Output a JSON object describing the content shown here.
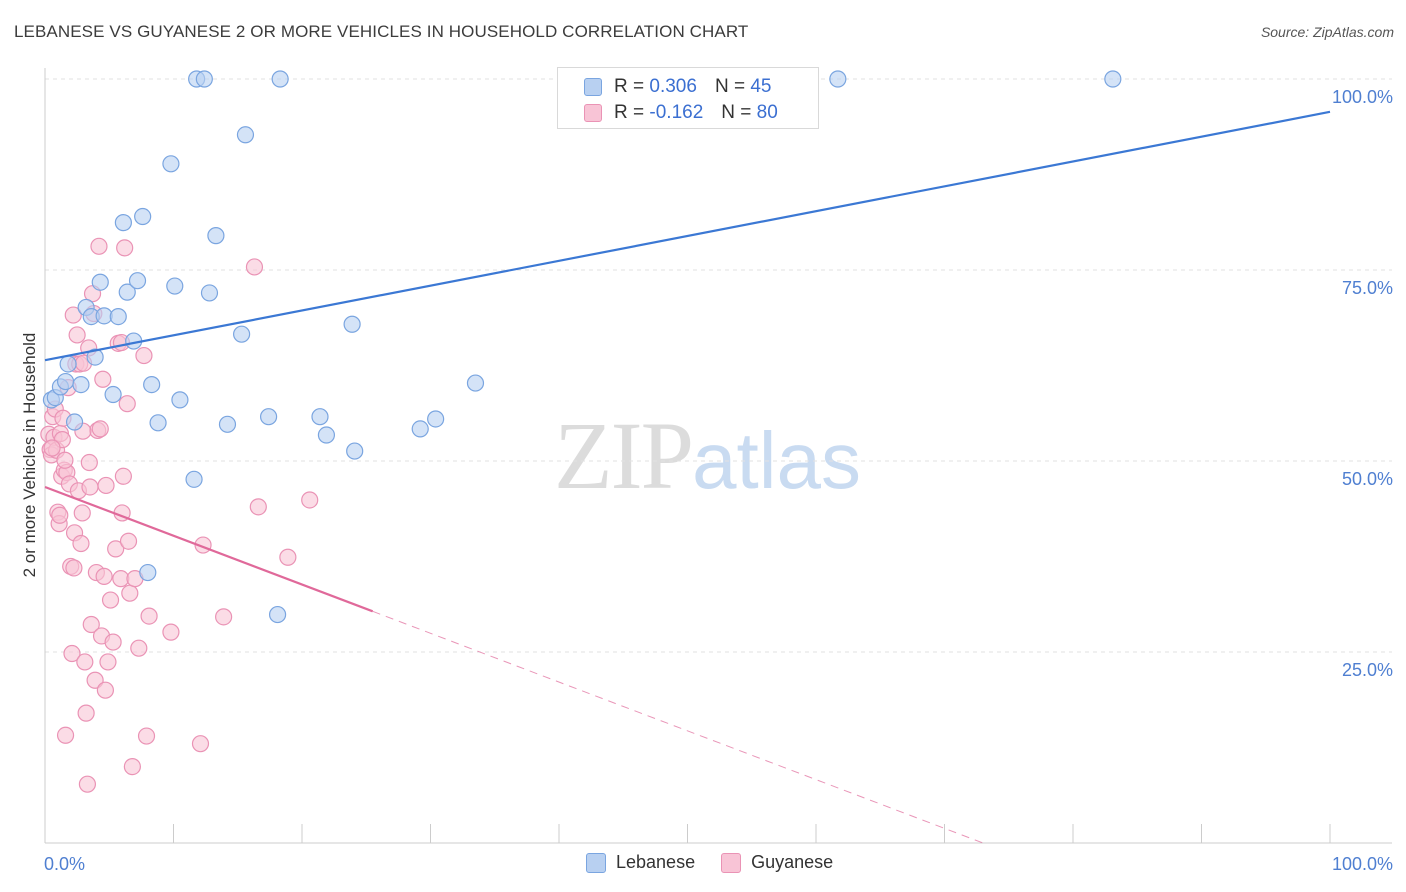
{
  "title": "LEBANESE VS GUYANESE 2 OR MORE VEHICLES IN HOUSEHOLD CORRELATION CHART",
  "source": "Source: ZipAtlas.com",
  "watermark": {
    "zip": "ZIP",
    "atlas": "atlas"
  },
  "colors": {
    "blue": "#3b78d4",
    "blue_fill": "#b8d0f1",
    "blue_stroke": "#7aa5e0",
    "pink": "#e0699a",
    "pink_fill": "#f8c4d6",
    "pink_stroke": "#ea93b5",
    "grid": "#e2e2e2",
    "tick_text": "#4f7fd1"
  },
  "legend": {
    "rows": [
      {
        "r_label": "R =",
        "r_value": "0.306",
        "n_label": "N =",
        "n_value": "45"
      },
      {
        "r_label": "R =",
        "r_value": "-0.162",
        "n_label": "N =",
        "n_value": "80"
      }
    ]
  },
  "bottom_legend": {
    "items": [
      "Lebanese",
      "Guyanese"
    ]
  },
  "chart_data": {
    "type": "scatter",
    "title": "LEBANESE VS GUYANESE 2 OR MORE VEHICLES IN HOUSEHOLD CORRELATION CHART",
    "xlabel": "",
    "ylabel": "2 or more Vehicles in Household",
    "xlim": [
      0,
      100
    ],
    "ylim": [
      0,
      100
    ],
    "x_tick_labels": [
      "0.0%",
      "100.0%"
    ],
    "y_ticks": [
      25,
      50,
      75,
      100
    ],
    "y_tick_labels": [
      "25.0%",
      "50.0%",
      "75.0%",
      "100.0%"
    ],
    "grid": true,
    "series": [
      {
        "name": "Lebanese",
        "r": 0.306,
        "n": 45,
        "trend": {
          "x0": 0,
          "y0": 63.2,
          "x1": 100,
          "y1": 95.7,
          "solid_until": 100
        },
        "points": [
          [
            0.5,
            58.0
          ],
          [
            0.8,
            58.3
          ],
          [
            1.2,
            59.7
          ],
          [
            1.6,
            60.4
          ],
          [
            1.8,
            62.7
          ],
          [
            2.3,
            55.1
          ],
          [
            2.8,
            60.0
          ],
          [
            3.2,
            70.1
          ],
          [
            3.6,
            68.9
          ],
          [
            3.9,
            63.6
          ],
          [
            4.3,
            73.4
          ],
          [
            4.6,
            69.0
          ],
          [
            5.3,
            58.7
          ],
          [
            5.7,
            68.9
          ],
          [
            6.1,
            81.2
          ],
          [
            6.4,
            72.1
          ],
          [
            6.9,
            65.7
          ],
          [
            7.2,
            73.6
          ],
          [
            7.6,
            82.0
          ],
          [
            8.0,
            35.4
          ],
          [
            8.3,
            60.0
          ],
          [
            8.8,
            55.0
          ],
          [
            9.8,
            88.9
          ],
          [
            10.1,
            72.9
          ],
          [
            10.5,
            58.0
          ],
          [
            11.6,
            47.6
          ],
          [
            11.8,
            100.0
          ],
          [
            12.4,
            100.0
          ],
          [
            12.8,
            72.0
          ],
          [
            13.3,
            79.5
          ],
          [
            14.2,
            54.8
          ],
          [
            15.3,
            66.6
          ],
          [
            15.6,
            92.7
          ],
          [
            17.4,
            55.8
          ],
          [
            18.1,
            29.9
          ],
          [
            18.3,
            100.0
          ],
          [
            21.4,
            55.8
          ],
          [
            21.9,
            53.4
          ],
          [
            23.9,
            67.9
          ],
          [
            24.1,
            51.3
          ],
          [
            29.2,
            54.2
          ],
          [
            30.4,
            55.5
          ],
          [
            33.5,
            60.2
          ],
          [
            61.7,
            100.0
          ],
          [
            83.1,
            100.0
          ]
        ]
      },
      {
        "name": "Guyanese",
        "r": -0.162,
        "n": 80,
        "trend": {
          "x0": 0,
          "y0": 46.6,
          "x1": 73.0,
          "y1": 0,
          "solid_until": 25.5
        },
        "points": [
          [
            0.3,
            53.5
          ],
          [
            0.4,
            51.5
          ],
          [
            0.5,
            50.8
          ],
          [
            0.6,
            55.8
          ],
          [
            0.7,
            53.1
          ],
          [
            0.8,
            56.8
          ],
          [
            0.9,
            51.4
          ],
          [
            1.0,
            43.3
          ],
          [
            1.1,
            41.8
          ],
          [
            1.2,
            53.6
          ],
          [
            1.3,
            48.0
          ],
          [
            1.4,
            55.6
          ],
          [
            1.5,
            48.8
          ],
          [
            1.6,
            14.1
          ],
          [
            1.7,
            48.5
          ],
          [
            1.8,
            59.6
          ],
          [
            1.9,
            47.0
          ],
          [
            2.0,
            36.2
          ],
          [
            2.1,
            24.8
          ],
          [
            2.2,
            69.1
          ],
          [
            2.3,
            40.6
          ],
          [
            2.4,
            62.7
          ],
          [
            2.5,
            66.5
          ],
          [
            2.6,
            46.1
          ],
          [
            2.7,
            62.7
          ],
          [
            2.8,
            39.2
          ],
          [
            2.9,
            43.2
          ],
          [
            3.0,
            62.8
          ],
          [
            3.1,
            23.7
          ],
          [
            3.2,
            17.0
          ],
          [
            3.3,
            7.7
          ],
          [
            3.4,
            64.8
          ],
          [
            3.5,
            46.6
          ],
          [
            3.6,
            28.6
          ],
          [
            3.7,
            71.9
          ],
          [
            3.8,
            69.3
          ],
          [
            3.9,
            21.3
          ],
          [
            4.0,
            35.4
          ],
          [
            4.1,
            54.0
          ],
          [
            4.2,
            78.1
          ],
          [
            4.3,
            54.2
          ],
          [
            4.4,
            27.1
          ],
          [
            4.5,
            60.7
          ],
          [
            4.6,
            34.9
          ],
          [
            4.7,
            20.0
          ],
          [
            4.9,
            23.7
          ],
          [
            5.1,
            31.8
          ],
          [
            5.3,
            26.3
          ],
          [
            5.5,
            38.5
          ],
          [
            5.7,
            65.4
          ],
          [
            5.9,
            34.6
          ],
          [
            6.0,
            43.2
          ],
          [
            6.1,
            48.0
          ],
          [
            6.2,
            77.9
          ],
          [
            6.4,
            57.5
          ],
          [
            6.5,
            39.5
          ],
          [
            6.6,
            32.7
          ],
          [
            6.8,
            10.0
          ],
          [
            7.0,
            34.6
          ],
          [
            7.3,
            25.5
          ],
          [
            7.7,
            63.8
          ],
          [
            7.9,
            14.0
          ],
          [
            8.1,
            29.7
          ],
          [
            9.8,
            27.6
          ],
          [
            12.1,
            13.0
          ],
          [
            12.3,
            39.0
          ],
          [
            13.9,
            29.6
          ],
          [
            16.3,
            75.4
          ],
          [
            16.6,
            44.0
          ],
          [
            18.9,
            37.4
          ],
          [
            20.6,
            44.9
          ],
          [
            1.15,
            42.9
          ],
          [
            1.35,
            52.8
          ],
          [
            1.55,
            50.1
          ],
          [
            2.25,
            36.0
          ],
          [
            3.45,
            49.8
          ],
          [
            2.95,
            53.9
          ],
          [
            4.75,
            46.8
          ],
          [
            0.55,
            51.7
          ],
          [
            5.95,
            65.5
          ]
        ]
      }
    ]
  }
}
